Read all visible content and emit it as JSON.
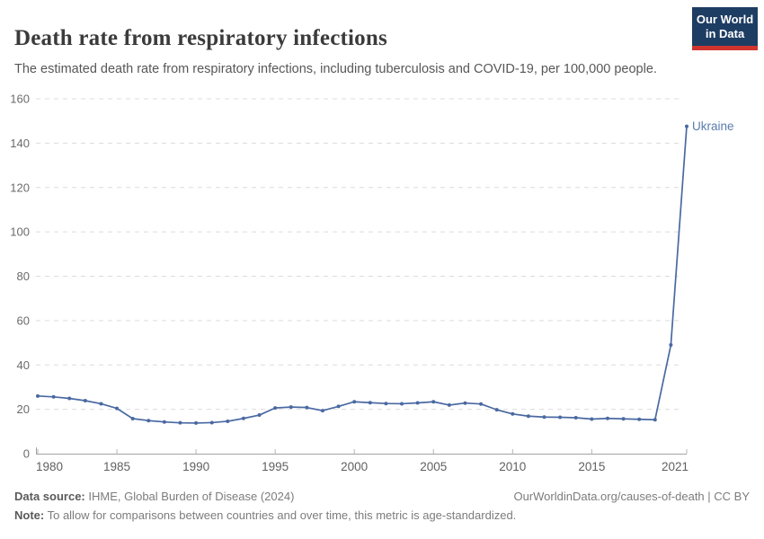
{
  "header": {
    "title": "Death rate from respiratory infections",
    "subtitle": "The estimated death rate from respiratory infections, including tuberculosis and COVID-19, per 100,000 people.",
    "logo": {
      "line1": "Our World",
      "line2": "in Data"
    }
  },
  "chart_data": {
    "type": "line",
    "title": "Death rate from respiratory infections",
    "xlabel": "",
    "ylabel": "",
    "unit": "per 100,000 people",
    "ylim": [
      0,
      160
    ],
    "yticks": [
      0,
      20,
      40,
      60,
      80,
      100,
      120,
      140,
      160
    ],
    "xticks": [
      1980,
      1985,
      1990,
      1995,
      2000,
      2005,
      2010,
      2015,
      2021
    ],
    "grid": "horizontal-dashed",
    "legend_position": "end-of-line-label",
    "series": [
      {
        "name": "Ukraine",
        "x": [
          1980,
          1981,
          1982,
          1983,
          1984,
          1985,
          1986,
          1987,
          1988,
          1989,
          1990,
          1991,
          1992,
          1993,
          1994,
          1995,
          1996,
          1997,
          1998,
          1999,
          2000,
          2001,
          2002,
          2003,
          2004,
          2005,
          2006,
          2007,
          2008,
          2009,
          2010,
          2011,
          2012,
          2013,
          2014,
          2015,
          2016,
          2017,
          2018,
          2019,
          2020,
          2021
        ],
        "values": [
          26.0,
          25.6,
          24.9,
          23.9,
          22.5,
          20.4,
          15.8,
          14.9,
          14.3,
          13.9,
          13.8,
          14.0,
          14.6,
          15.9,
          17.4,
          20.6,
          21.0,
          20.8,
          19.4,
          21.3,
          23.4,
          23.0,
          22.6,
          22.5,
          22.9,
          23.4,
          21.9,
          22.8,
          22.4,
          19.8,
          17.9,
          16.9,
          16.5,
          16.4,
          16.2,
          15.6,
          15.9,
          15.7,
          15.5,
          15.3,
          49.0,
          147.6
        ]
      }
    ]
  },
  "footer": {
    "source_label": "Data source:",
    "source_text": " IHME, Global Burden of Disease (2024)",
    "link": "OurWorldinData.org/causes-of-death | CC BY",
    "note_label": "Note:",
    "note_text": " To allow for comparisons between countries and over time, this metric is age-standardized."
  },
  "colors": {
    "line": "#4a69a2",
    "series_label": "#5b7cab",
    "logo_navy": "#1d3d63",
    "logo_red": "#cf342e",
    "gridline": "#dcdcdc",
    "axis": "#a3a3a3"
  }
}
